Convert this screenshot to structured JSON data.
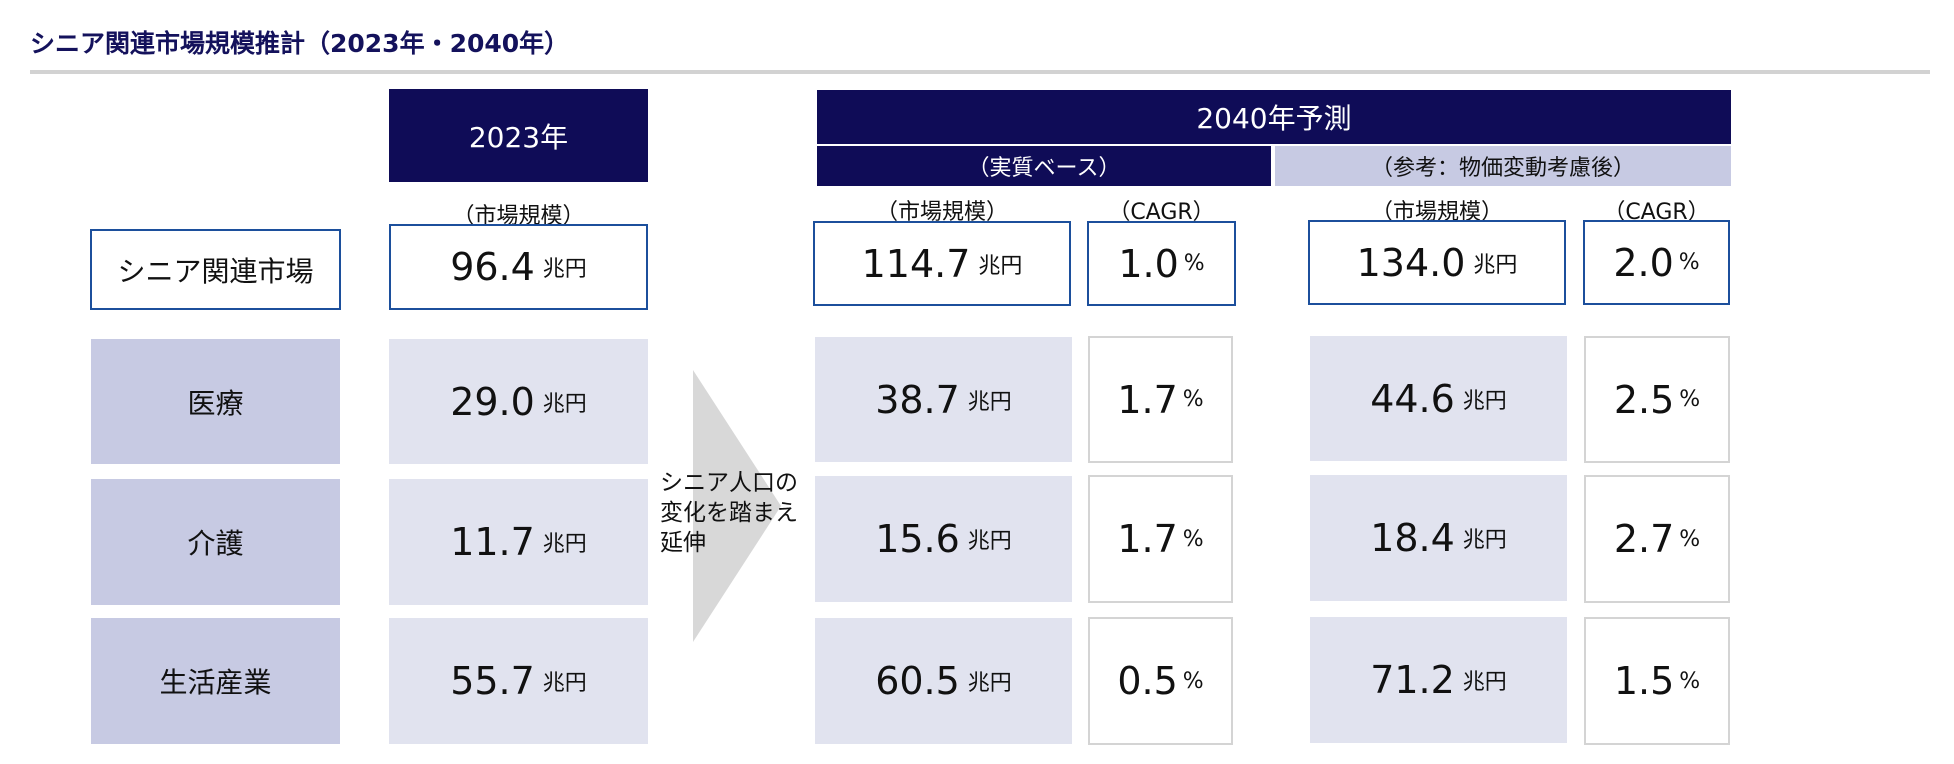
{
  "title": "シニア関連市場規模推計（2023年・2040年）",
  "header_2023": "2023年",
  "header_2040": "2040年予測",
  "header_real": "（実質ベース）",
  "header_ref": "（参考：物価変動考慮後）",
  "col_market_size": "（市場規模）",
  "col_cagr": "（CAGR）",
  "unit_trillion": "兆円",
  "unit_percent": "%",
  "arrow_note": [
    "シニア人口の",
    "変化を踏まえ",
    "延伸"
  ],
  "rows": [
    {
      "label": "シニア関連市場",
      "v2023": "96.4",
      "real_size": "114.7",
      "real_cagr": "1.0",
      "ref_size": "134.0",
      "ref_cagr": "2.0"
    },
    {
      "label": "医療",
      "v2023": "29.0",
      "real_size": "38.7",
      "real_cagr": "1.7",
      "ref_size": "44.6",
      "ref_cagr": "2.5"
    },
    {
      "label": "介護",
      "v2023": "11.7",
      "real_size": "15.6",
      "real_cagr": "1.7",
      "ref_size": "18.4",
      "ref_cagr": "2.7"
    },
    {
      "label": "生活産業",
      "v2023": "55.7",
      "real_size": "60.5",
      "real_cagr": "0.5",
      "ref_size": "71.2",
      "ref_cagr": "1.5"
    }
  ],
  "colors": {
    "navy": "#0f0c57",
    "light_header": "#c7cae3",
    "cell_gray": "#e1e3ef",
    "border_blue": "#1c4f9c"
  }
}
